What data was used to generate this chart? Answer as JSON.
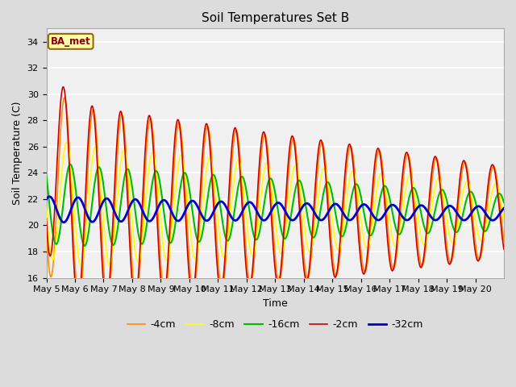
{
  "title": "Soil Temperatures Set B",
  "xlabel": "Time",
  "ylabel": "Soil Temperature (C)",
  "ylim": [
    16,
    35
  ],
  "yticks": [
    16,
    18,
    20,
    22,
    24,
    26,
    28,
    30,
    32,
    34
  ],
  "annotation_text": "BA_met",
  "background_color": "#dcdcdc",
  "legend_labels": [
    "-2cm",
    "-4cm",
    "-8cm",
    "-16cm",
    "-32cm"
  ],
  "legend_colors": [
    "#cc0000",
    "#ff8c00",
    "#ffff00",
    "#00bb00",
    "#0000cc"
  ],
  "line_widths": [
    1.2,
    1.2,
    1.2,
    1.5,
    2.0
  ],
  "xtick_days": [
    5,
    6,
    7,
    8,
    9,
    10,
    11,
    12,
    13,
    14,
    15,
    16,
    17,
    18,
    19,
    20
  ],
  "num_days": 16,
  "pts_per_day": 48
}
